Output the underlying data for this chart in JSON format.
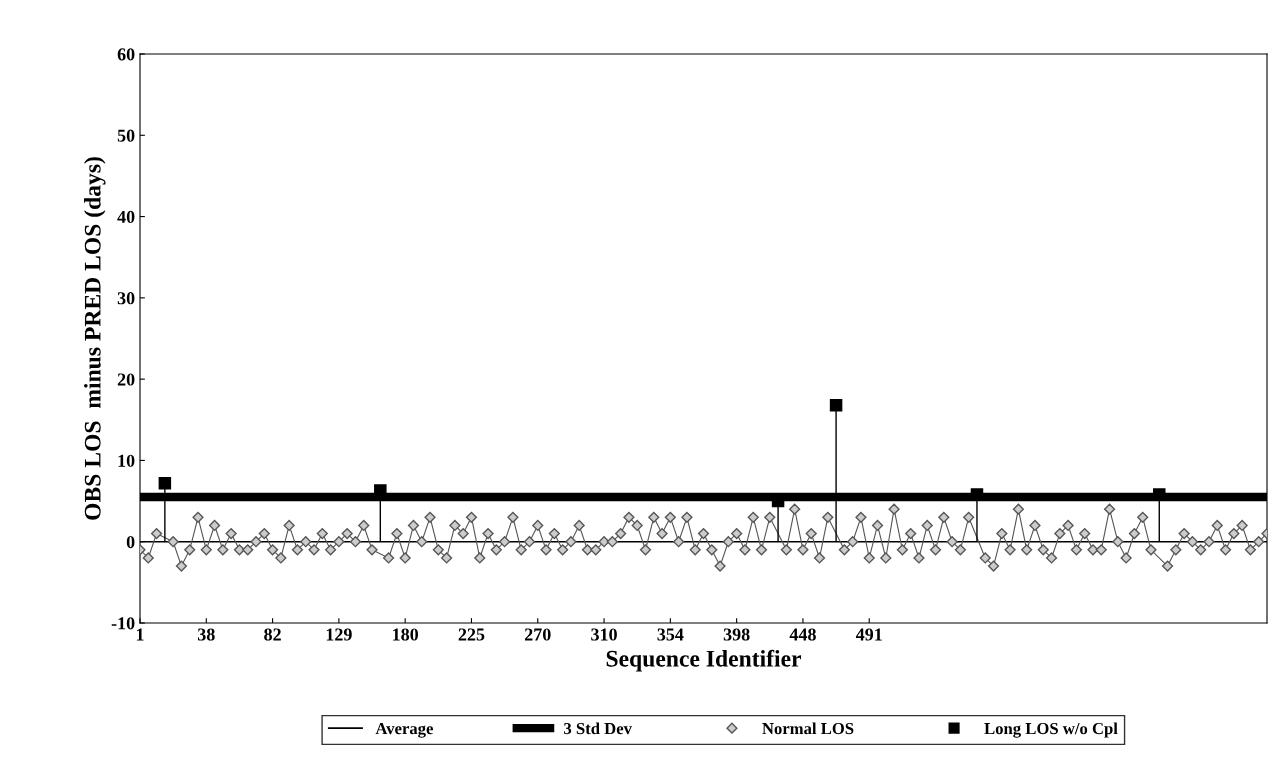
{
  "chart_data": {
    "type": "line",
    "xlabel": "Sequence Identifier",
    "ylabel": "OBS LOS  minus PRED LOS (days)",
    "ylim": [
      -10,
      60
    ],
    "yticks": [
      -10,
      0,
      10,
      20,
      30,
      40,
      50,
      60
    ],
    "categories": [
      "1",
      null,
      null,
      null,
      null,
      null,
      null,
      null,
      "38",
      null,
      null,
      null,
      null,
      null,
      null,
      null,
      "82",
      null,
      null,
      null,
      null,
      null,
      null,
      null,
      "129",
      null,
      null,
      null,
      null,
      null,
      null,
      null,
      "180",
      null,
      null,
      null,
      null,
      null,
      null,
      null,
      "225",
      null,
      null,
      null,
      null,
      null,
      null,
      null,
      "270",
      null,
      null,
      null,
      null,
      null,
      null,
      null,
      "310",
      null,
      null,
      null,
      null,
      null,
      null,
      null,
      "354",
      null,
      null,
      null,
      null,
      null,
      null,
      null,
      "398",
      null,
      null,
      null,
      null,
      null,
      null,
      null,
      "448",
      null,
      null,
      null,
      null,
      null,
      null,
      null,
      "491",
      null,
      null,
      null,
      null,
      null,
      null,
      null,
      null,
      null,
      null,
      null,
      null,
      null,
      null,
      null,
      null,
      null,
      null,
      null,
      null,
      null,
      null,
      null,
      null,
      null,
      null,
      null,
      null,
      null,
      null,
      null,
      null,
      null,
      null,
      null,
      null,
      null,
      null,
      null,
      null,
      null,
      null,
      null,
      null,
      null,
      null,
      null,
      null
    ],
    "grid": false,
    "legend": "bottom",
    "ref_lines": [
      {
        "axis": "y",
        "value": 0,
        "label": "Average",
        "color": "#000000"
      },
      {
        "axis": "y",
        "value": 5.5,
        "label": "3 Std Dev",
        "color": "#000000"
      }
    ],
    "series": [
      {
        "name": "Normal LOS",
        "color": "#555555",
        "marker": "diamond",
        "values": [
          -1,
          -2,
          1,
          null,
          0,
          -3,
          -1,
          3,
          -1,
          2,
          -1,
          1,
          -1,
          -1,
          0,
          1,
          -1,
          -2,
          2,
          -1,
          0,
          -1,
          1,
          -1,
          0,
          1,
          0,
          2,
          -1,
          null,
          -2,
          1,
          -2,
          2,
          0,
          3,
          -1,
          -2,
          2,
          1,
          3,
          -2,
          1,
          -1,
          0,
          3,
          -1,
          0,
          2,
          -1,
          1,
          -1,
          0,
          2,
          -1,
          -1,
          0,
          0,
          1,
          3,
          2,
          -1,
          3,
          1,
          3,
          0,
          3,
          -1,
          1,
          -1,
          -3,
          0,
          1,
          -1,
          3,
          -1,
          3,
          null,
          -1,
          4,
          -1,
          1,
          -2,
          3,
          null,
          -1,
          0,
          3,
          -2,
          2,
          -2,
          4,
          -1,
          1,
          -2,
          2,
          -1,
          3,
          0,
          -1,
          3,
          null,
          -2,
          -3,
          1,
          -1,
          4,
          -1,
          2,
          -1,
          -2,
          1,
          2,
          -1,
          1,
          -1,
          -1,
          4,
          0,
          -2,
          1,
          3,
          -1,
          null,
          -3,
          -1,
          1,
          0,
          -1,
          0,
          2,
          -1,
          1,
          2,
          -1,
          0,
          1
        ]
      },
      {
        "name": "Long LOS w/o Cpl",
        "type": "lollipop",
        "color": "#000000",
        "marker": "square",
        "values": [
          null,
          null,
          null,
          7.2,
          null,
          null,
          null,
          null,
          null,
          null,
          null,
          null,
          null,
          null,
          null,
          null,
          null,
          null,
          null,
          null,
          null,
          null,
          null,
          null,
          null,
          null,
          null,
          null,
          null,
          6.3,
          null,
          null,
          null,
          null,
          null,
          null,
          null,
          null,
          null,
          null,
          null,
          null,
          null,
          null,
          null,
          null,
          null,
          null,
          null,
          null,
          null,
          null,
          null,
          null,
          null,
          null,
          null,
          null,
          null,
          null,
          null,
          null,
          null,
          null,
          null,
          null,
          null,
          null,
          null,
          null,
          null,
          null,
          null,
          null,
          null,
          null,
          null,
          5.0,
          null,
          null,
          null,
          null,
          null,
          null,
          16.8,
          null,
          null,
          null,
          null,
          null,
          null,
          null,
          null,
          null,
          null,
          null,
          null,
          null,
          null,
          null,
          null,
          5.8,
          null,
          null,
          null,
          null,
          null,
          null,
          null,
          null,
          null,
          null,
          null,
          null,
          null,
          null,
          null,
          null,
          null,
          null,
          null,
          null,
          null,
          5.8,
          null,
          null,
          null,
          null,
          null,
          null,
          null,
          null,
          null,
          null,
          null,
          null,
          null
        ]
      }
    ]
  }
}
